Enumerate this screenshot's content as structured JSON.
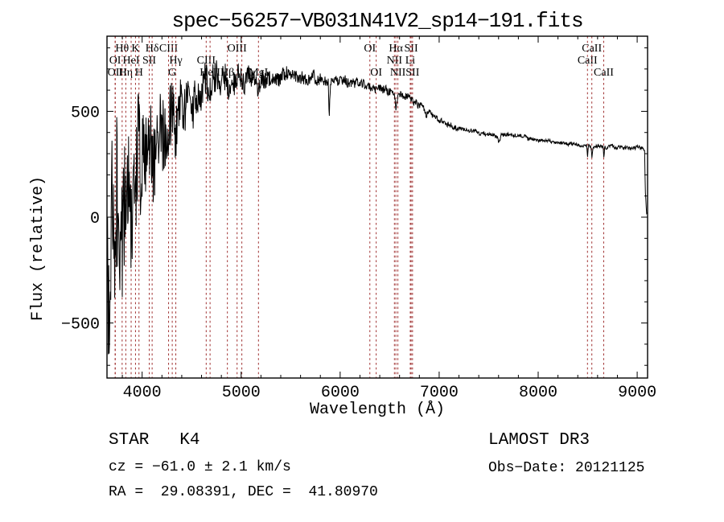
{
  "chart_data": {
    "type": "line",
    "title": "spec−56257−VB031N41V2_sp14−191.fits",
    "xlabel": "Wavelength (Å)",
    "ylabel": "Flux (relative)",
    "xlim": [
      3645,
      9105
    ],
    "ylim": [
      -760,
      855
    ],
    "xticks": [
      4000,
      5000,
      6000,
      7000,
      8000,
      9000
    ],
    "yticks": [
      -500,
      0,
      500
    ],
    "x_minor_step": 200,
    "y_minor_step": 100,
    "grid": false,
    "line_color": "#000000",
    "marker_color": "#a03232",
    "background": "#ffffff",
    "spectral_lines": [
      {
        "wavelength": 3727,
        "label": "OI",
        "row": 2
      },
      {
        "wavelength": 3729,
        "label": "OII",
        "row": 3
      },
      {
        "wavelength": 3798,
        "label": "Hθ",
        "row": 1
      },
      {
        "wavelength": 3835,
        "label": "Hη",
        "row": 3
      },
      {
        "wavelength": 3889,
        "label": "HeI",
        "row": 2
      },
      {
        "wavelength": 3933,
        "label": "K",
        "row": 1
      },
      {
        "wavelength": 3968,
        "label": "H",
        "row": 3
      },
      {
        "wavelength": 4072,
        "label": "SII",
        "row": 2
      },
      {
        "wavelength": 4101,
        "label": "Hδ",
        "row": 1
      },
      {
        "wavelength": 4267,
        "label": "CIII",
        "row": 1
      },
      {
        "wavelength": 4304,
        "label": "G",
        "row": 3
      },
      {
        "wavelength": 4340,
        "label": "Hγ",
        "row": 2
      },
      {
        "wavelength": 4647,
        "label": "CIII",
        "row": 2
      },
      {
        "wavelength": 4686,
        "label": "HeII",
        "row": 3
      },
      {
        "wavelength": 4861,
        "label": "Hβ",
        "row": 3
      },
      {
        "wavelength": 4959,
        "label": "OIII",
        "row": 1
      },
      {
        "wavelength": 5007,
        "label": "",
        "row": 1
      },
      {
        "wavelength": 5175,
        "label": "MgI",
        "row": 3
      },
      {
        "wavelength": 6300,
        "label": "OI",
        "row": 1
      },
      {
        "wavelength": 6364,
        "label": "OI",
        "row": 3
      },
      {
        "wavelength": 6548,
        "label": "NII",
        "row": 2
      },
      {
        "wavelength": 6563,
        "label": "Hα",
        "row": 1
      },
      {
        "wavelength": 6583,
        "label": "NII",
        "row": 3
      },
      {
        "wavelength": 6708,
        "label": "Li",
        "row": 2
      },
      {
        "wavelength": 6717,
        "label": "SII",
        "row": 1
      },
      {
        "wavelength": 6731,
        "label": "SII",
        "row": 3
      },
      {
        "wavelength": 8498,
        "label": "CaII",
        "row": 2
      },
      {
        "wavelength": 8542,
        "label": "CaII",
        "row": 1
      },
      {
        "wavelength": 8662,
        "label": "CaII",
        "row": 3
      }
    ],
    "continuum": [
      [
        3648,
        -320
      ],
      [
        3690,
        -180
      ],
      [
        3730,
        -60
      ],
      [
        3770,
        20
      ],
      [
        3810,
        80
      ],
      [
        3850,
        130
      ],
      [
        3890,
        180
      ],
      [
        3930,
        215
      ],
      [
        3970,
        250
      ],
      [
        4020,
        280
      ],
      [
        4080,
        305
      ],
      [
        4140,
        335
      ],
      [
        4200,
        370
      ],
      [
        4260,
        400
      ],
      [
        4310,
        425
      ],
      [
        4360,
        455
      ],
      [
        4420,
        495
      ],
      [
        4480,
        535
      ],
      [
        4540,
        570
      ],
      [
        4600,
        595
      ],
      [
        4660,
        615
      ],
      [
        4720,
        630
      ],
      [
        4790,
        645
      ],
      [
        4861,
        620
      ],
      [
        4920,
        645
      ],
      [
        4980,
        650
      ],
      [
        5040,
        650
      ],
      [
        5100,
        655
      ],
      [
        5140,
        640
      ],
      [
        5175,
        610
      ],
      [
        5210,
        645
      ],
      [
        5280,
        658
      ],
      [
        5360,
        662
      ],
      [
        5460,
        666
      ],
      [
        5560,
        666
      ],
      [
        5660,
        662
      ],
      [
        5760,
        657
      ],
      [
        5830,
        650
      ],
      [
        5880,
        640
      ],
      [
        5890,
        460
      ],
      [
        5902,
        635
      ],
      [
        5960,
        648
      ],
      [
        6040,
        644
      ],
      [
        6120,
        638
      ],
      [
        6200,
        630
      ],
      [
        6280,
        618
      ],
      [
        6340,
        610
      ],
      [
        6420,
        605
      ],
      [
        6500,
        595
      ],
      [
        6550,
        585
      ],
      [
        6563,
        505
      ],
      [
        6580,
        580
      ],
      [
        6650,
        570
      ],
      [
        6720,
        552
      ],
      [
        6790,
        535
      ],
      [
        6855,
        510
      ],
      [
        6870,
        470
      ],
      [
        6890,
        500
      ],
      [
        6950,
        478
      ],
      [
        7010,
        455
      ],
      [
        7070,
        440
      ],
      [
        7140,
        428
      ],
      [
        7210,
        418
      ],
      [
        7290,
        410
      ],
      [
        7370,
        402
      ],
      [
        7450,
        396
      ],
      [
        7530,
        390
      ],
      [
        7590,
        384
      ],
      [
        7605,
        350
      ],
      [
        7625,
        384
      ],
      [
        7700,
        388
      ],
      [
        7780,
        384
      ],
      [
        7860,
        378
      ],
      [
        7940,
        371
      ],
      [
        8020,
        365
      ],
      [
        8100,
        360
      ],
      [
        8180,
        355
      ],
      [
        8260,
        350
      ],
      [
        8340,
        346
      ],
      [
        8420,
        342
      ],
      [
        8490,
        336
      ],
      [
        8498,
        285
      ],
      [
        8510,
        336
      ],
      [
        8538,
        330
      ],
      [
        8542,
        278
      ],
      [
        8552,
        332
      ],
      [
        8620,
        336
      ],
      [
        8658,
        326
      ],
      [
        8662,
        272
      ],
      [
        8672,
        330
      ],
      [
        8740,
        333
      ],
      [
        8820,
        331
      ],
      [
        8900,
        329
      ],
      [
        8980,
        328
      ],
      [
        9040,
        328
      ],
      [
        9060,
        324
      ],
      [
        9075,
        310
      ],
      [
        9082,
        120
      ],
      [
        9095,
        15
      ]
    ],
    "noise_amplitude": [
      [
        3648,
        430
      ],
      [
        3720,
        400
      ],
      [
        3790,
        370
      ],
      [
        3860,
        335
      ],
      [
        3930,
        305
      ],
      [
        4000,
        275
      ],
      [
        4080,
        250
      ],
      [
        4160,
        228
      ],
      [
        4240,
        205
      ],
      [
        4330,
        185
      ],
      [
        4430,
        155
      ],
      [
        4530,
        125
      ],
      [
        4640,
        100
      ],
      [
        4760,
        85
      ],
      [
        4880,
        72
      ],
      [
        5000,
        62
      ],
      [
        5130,
        55
      ],
      [
        5270,
        47
      ],
      [
        5420,
        40
      ],
      [
        5580,
        35
      ],
      [
        5750,
        31
      ],
      [
        5920,
        28
      ],
      [
        6100,
        26
      ],
      [
        6300,
        23
      ],
      [
        6500,
        21
      ],
      [
        6700,
        19
      ],
      [
        6900,
        17
      ],
      [
        7100,
        15
      ],
      [
        7350,
        12
      ],
      [
        7600,
        11
      ],
      [
        7900,
        10
      ],
      [
        8200,
        9
      ],
      [
        8500,
        9
      ],
      [
        8800,
        10
      ],
      [
        9000,
        11
      ],
      [
        9095,
        6
      ]
    ],
    "noise_seed": 20121125,
    "sample_step": 4
  },
  "annotations": {
    "class_line": "STAR   K4",
    "cz_line": "cz = −61.0 ± 2.1 km/s",
    "radec_line": "RA =  29.08391, DEC =  41.80970",
    "survey": "LAMOST DR3",
    "obs_date": "Obs−Date: 20121125"
  }
}
